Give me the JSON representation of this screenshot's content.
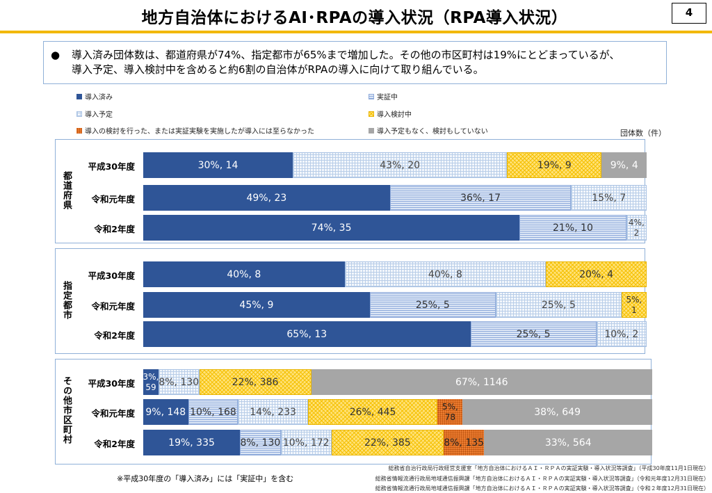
{
  "header": {
    "title": "地方自治体におけるAI･RPAの導入状況（RPA導入状況）",
    "page_number": "4"
  },
  "summary": {
    "bullet": "●",
    "line1": "導入済み団体数は、都道府県が74%、指定都市が65%まで増加した。その他の市区町村は19%にとどまっているが、",
    "line2": "導入予定、導入検討中を含めると約6割の自治体がRPAの導入に向けて取り組んでいる。"
  },
  "chart_data": {
    "type": "bar",
    "orientation": "horizontal",
    "stacked": true,
    "unit_label": "団体数（件）",
    "legend": [
      {
        "key": "done",
        "label": "導入済み"
      },
      {
        "key": "pilot",
        "label": "実証中"
      },
      {
        "key": "plan",
        "label": "導入予定"
      },
      {
        "key": "consider",
        "label": "導入検討中"
      },
      {
        "key": "notadopted",
        "label": "導入の検討を行った、または実証実験を実施したが導入には至らなかった"
      },
      {
        "key": "none",
        "label": "導入予定もなく、検討もしていない"
      }
    ],
    "colors": {
      "done": "#2f5597",
      "pilot": "#8eaadb",
      "plan": "#b8cde8",
      "consider": "#f5c000",
      "notadopted": "#ed7d31",
      "none": "#a6a6a6"
    },
    "groups": [
      {
        "name": "都道府県",
        "rows": [
          {
            "year": "平成30年度",
            "segments": [
              {
                "key": "done",
                "label": "30%, 14",
                "percent": 30,
                "count": 14
              },
              {
                "key": "plan",
                "label": "43%, 20",
                "percent": 43,
                "count": 20
              },
              {
                "key": "consider",
                "label": "19%, 9",
                "percent": 19,
                "count": 9
              },
              {
                "key": "none",
                "label": "9%, 4",
                "percent": 9,
                "count": 4
              }
            ]
          },
          {
            "year": "令和元年度",
            "segments": [
              {
                "key": "done",
                "label": "49%, 23",
                "percent": 49,
                "count": 23
              },
              {
                "key": "pilot",
                "label": "36%, 17",
                "percent": 36,
                "count": 17
              },
              {
                "key": "plan",
                "label": "15%, 7",
                "percent": 15,
                "count": 7
              }
            ]
          },
          {
            "year": "令和2年度",
            "segments": [
              {
                "key": "done",
                "label": "74%, 35",
                "percent": 74,
                "count": 35
              },
              {
                "key": "pilot",
                "label": "21%, 10",
                "percent": 21,
                "count": 10
              },
              {
                "key": "plan",
                "label": "4%, 2",
                "percent": 4,
                "count": 2
              }
            ]
          }
        ]
      },
      {
        "name": "指定都市",
        "rows": [
          {
            "year": "平成30年度",
            "segments": [
              {
                "key": "done",
                "label": "40%, 8",
                "percent": 40,
                "count": 8
              },
              {
                "key": "plan",
                "label": "40%, 8",
                "percent": 40,
                "count": 8
              },
              {
                "key": "consider",
                "label": "20%, 4",
                "percent": 20,
                "count": 4
              }
            ]
          },
          {
            "year": "令和元年度",
            "segments": [
              {
                "key": "done",
                "label": "45%, 9",
                "percent": 45,
                "count": 9
              },
              {
                "key": "pilot",
                "label": "25%, 5",
                "percent": 25,
                "count": 5
              },
              {
                "key": "plan",
                "label": "25%, 5",
                "percent": 25,
                "count": 5
              },
              {
                "key": "consider",
                "label": "5%, 1",
                "percent": 5,
                "count": 1
              }
            ]
          },
          {
            "year": "令和2年度",
            "segments": [
              {
                "key": "done",
                "label": "65%, 13",
                "percent": 65,
                "count": 13
              },
              {
                "key": "pilot",
                "label": "25%, 5",
                "percent": 25,
                "count": 5
              },
              {
                "key": "plan",
                "label": "10%, 2",
                "percent": 10,
                "count": 2
              }
            ]
          }
        ]
      },
      {
        "name": "その他市区町村",
        "rows": [
          {
            "year": "平成30年度",
            "segments": [
              {
                "key": "done",
                "label": "3%, 59",
                "percent": 3,
                "count": 59
              },
              {
                "key": "plan",
                "label": "8%, 130",
                "percent": 8,
                "count": 130
              },
              {
                "key": "consider",
                "label": "22%, 386",
                "percent": 22,
                "count": 386
              },
              {
                "key": "none",
                "label": "67%, 1146",
                "percent": 67,
                "count": 1146
              }
            ]
          },
          {
            "year": "令和元年度",
            "segments": [
              {
                "key": "done",
                "label": "9%, 148",
                "percent": 9,
                "count": 148
              },
              {
                "key": "pilot",
                "label": "10%, 168",
                "percent": 10,
                "count": 168
              },
              {
                "key": "plan",
                "label": "14%, 233",
                "percent": 14,
                "count": 233
              },
              {
                "key": "consider",
                "label": "26%, 445",
                "percent": 26,
                "count": 445
              },
              {
                "key": "notadopted",
                "label": "5%, 78",
                "percent": 5,
                "count": 78
              },
              {
                "key": "none",
                "label": "38%, 649",
                "percent": 38,
                "count": 649
              }
            ]
          },
          {
            "year": "令和2年度",
            "segments": [
              {
                "key": "done",
                "label": "19%, 335",
                "percent": 19,
                "count": 335
              },
              {
                "key": "pilot",
                "label": "8%, 130",
                "percent": 8,
                "count": 130
              },
              {
                "key": "plan",
                "label": "10%, 172",
                "percent": 10,
                "count": 172
              },
              {
                "key": "consider",
                "label": "22%, 385",
                "percent": 22,
                "count": 385
              },
              {
                "key": "notadopted",
                "label": "8%, 135",
                "percent": 8,
                "count": 135
              },
              {
                "key": "none",
                "label": "33%, 564",
                "percent": 33,
                "count": 564
              }
            ]
          }
        ]
      }
    ]
  },
  "footer": {
    "note": "※平成30年度の「導入済み」には「実証中」を含む",
    "sources": [
      "総務省自治行政局行政経営支援室「地方自治体におけるＡＩ・ＲＰＡの実証実験・導入状況等調査」（平成30年度11月1日現在）",
      "総務省情報流通行政局地域通信振興課「地方自治体におけるＡＩ・ＲＰＡの実証実験・導入状況等調査」（令和元年度12月31日現在）",
      "総務省情報流通行政局地域通信振興課「地方自治体におけるＡＩ・ＲＰＡの実証実験・導入状況等調査」（令和２年度12月31日現在）"
    ]
  }
}
